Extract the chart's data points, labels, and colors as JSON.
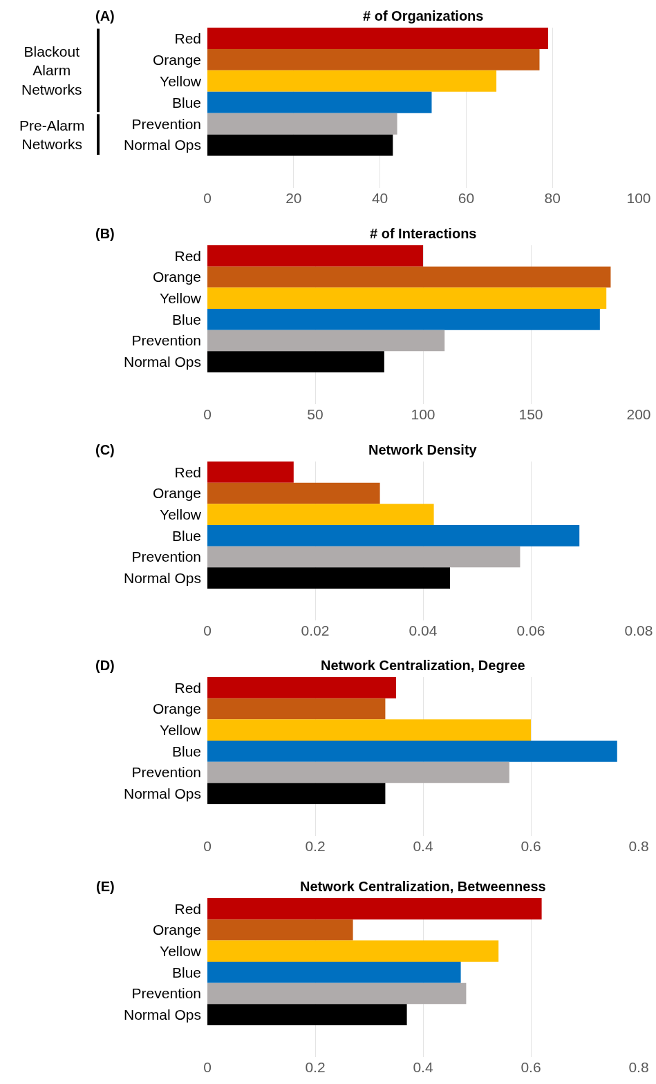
{
  "chart_data": [
    {
      "type": "bar",
      "orientation": "horizontal",
      "title": "# of Organizations",
      "categories": [
        "Red",
        "Orange",
        "Yellow",
        "Blue",
        "Prevention",
        "Normal Ops"
      ],
      "values": [
        79,
        77,
        67,
        52,
        44,
        43
      ],
      "colors": [
        "#c00000",
        "#c55a11",
        "#ffc000",
        "#0070c0",
        "#afabab",
        "#000000"
      ],
      "xlim": [
        0,
        100
      ],
      "xticks": [
        0,
        20,
        40,
        60,
        80,
        100
      ],
      "grid": "x",
      "annotations": [
        "(A)",
        "Blackout Alarm Networks",
        "Pre-Alarm Networks"
      ]
    },
    {
      "type": "bar",
      "orientation": "horizontal",
      "title": "# of Interactions",
      "categories": [
        "Red",
        "Orange",
        "Yellow",
        "Blue",
        "Prevention",
        "Normal Ops"
      ],
      "values": [
        100,
        187,
        185,
        182,
        110,
        82
      ],
      "colors": [
        "#c00000",
        "#c55a11",
        "#ffc000",
        "#0070c0",
        "#afabab",
        "#000000"
      ],
      "xlim": [
        0,
        200
      ],
      "xticks": [
        0,
        50,
        100,
        150,
        200
      ],
      "grid": "x",
      "annotations": [
        "(B)"
      ]
    },
    {
      "type": "bar",
      "orientation": "horizontal",
      "title": "Network Density",
      "categories": [
        "Red",
        "Orange",
        "Yellow",
        "Blue",
        "Prevention",
        "Normal Ops"
      ],
      "values": [
        0.016,
        0.032,
        0.042,
        0.069,
        0.058,
        0.045
      ],
      "colors": [
        "#c00000",
        "#c55a11",
        "#ffc000",
        "#0070c0",
        "#afabab",
        "#000000"
      ],
      "xlim": [
        0,
        0.08
      ],
      "xticks": [
        0,
        0.02,
        0.04,
        0.06,
        0.08
      ],
      "grid": "x",
      "annotations": [
        "(C)"
      ]
    },
    {
      "type": "bar",
      "orientation": "horizontal",
      "title": "Network Centralization, Degree",
      "categories": [
        "Red",
        "Orange",
        "Yellow",
        "Blue",
        "Prevention",
        "Normal Ops"
      ],
      "values": [
        0.35,
        0.33,
        0.6,
        0.76,
        0.56,
        0.33
      ],
      "colors": [
        "#c00000",
        "#c55a11",
        "#ffc000",
        "#0070c0",
        "#afabab",
        "#000000"
      ],
      "xlim": [
        0,
        0.8
      ],
      "xticks": [
        0,
        0.2,
        0.4,
        0.6,
        0.8
      ],
      "grid": "x",
      "annotations": [
        "(D)"
      ]
    },
    {
      "type": "bar",
      "orientation": "horizontal",
      "title": "Network Centralization, Betweenness",
      "categories": [
        "Red",
        "Orange",
        "Yellow",
        "Blue",
        "Prevention",
        "Normal Ops"
      ],
      "values": [
        0.62,
        0.27,
        0.54,
        0.47,
        0.48,
        0.37
      ],
      "colors": [
        "#c00000",
        "#c55a11",
        "#ffc000",
        "#0070c0",
        "#afabab",
        "#000000"
      ],
      "xlim": [
        0,
        0.8
      ],
      "xticks": [
        0,
        0.2,
        0.4,
        0.6,
        0.8
      ],
      "grid": "x",
      "annotations": [
        "(E)"
      ]
    }
  ]
}
